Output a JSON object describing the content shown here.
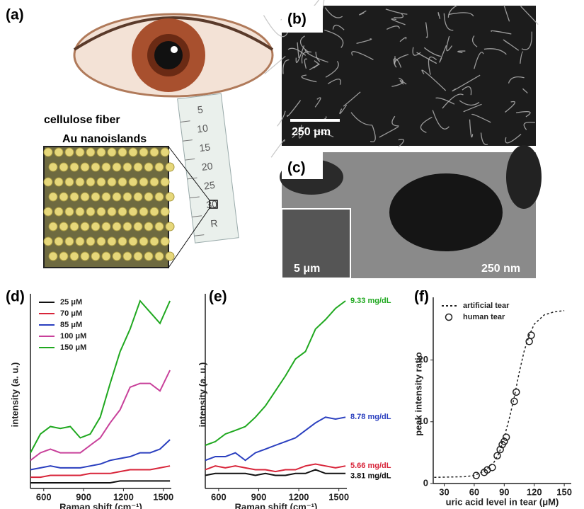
{
  "panels": {
    "a": {
      "label": "(a)",
      "annotations": [
        "cellulose fiber",
        "Au nanoislands"
      ],
      "ruler_ticks": [
        "5",
        "10",
        "15",
        "20",
        "25",
        "30",
        "R"
      ]
    },
    "b": {
      "label": "(b)",
      "scale_bar": "250 μm"
    },
    "c": {
      "label": "(c)",
      "scale_bars": [
        "5 μm",
        "250 nm"
      ]
    }
  },
  "chart_data": [
    {
      "type": "line",
      "label": "(d)",
      "xlabel": "Raman shift (cm⁻¹)",
      "ylabel": "intensity (a. u.)",
      "legend": "upper-left",
      "x": [
        500,
        575,
        650,
        725,
        800,
        875,
        950,
        1025,
        1100,
        1175,
        1250,
        1325,
        1400,
        1475,
        1550
      ],
      "xlim": [
        500,
        1560
      ],
      "xticks": [
        600,
        900,
        1200,
        1500
      ],
      "ylim": [
        0,
        100
      ],
      "series": [
        {
          "name": "25 μM",
          "color": "#111111",
          "values": [
            3,
            3,
            3,
            3,
            3,
            3,
            3,
            3,
            3,
            4,
            4,
            4,
            4,
            4,
            4
          ]
        },
        {
          "name": "70 μM",
          "color": "#d8253a",
          "values": [
            6,
            6,
            7,
            7,
            7,
            7,
            8,
            8,
            8,
            9,
            10,
            10,
            10,
            11,
            12
          ]
        },
        {
          "name": "85 μM",
          "color": "#2a3fbf",
          "values": [
            10,
            11,
            12,
            11,
            11,
            11,
            12,
            13,
            15,
            16,
            17,
            19,
            19,
            21,
            26
          ]
        },
        {
          "name": "100 μM",
          "color": "#c8409a",
          "values": [
            15,
            19,
            21,
            19,
            19,
            19,
            23,
            27,
            35,
            42,
            54,
            56,
            56,
            52,
            63
          ]
        },
        {
          "name": "150 μM",
          "color": "#1fa81f",
          "values": [
            19,
            29,
            33,
            32,
            33,
            27,
            29,
            38,
            56,
            73,
            85,
            100,
            94,
            88,
            100
          ]
        }
      ]
    },
    {
      "type": "line",
      "label": "(e)",
      "xlabel": "Raman shift (cm⁻¹)",
      "ylabel": "intensity (a. u.)",
      "legend": "end",
      "x": [
        500,
        575,
        650,
        725,
        800,
        875,
        950,
        1025,
        1100,
        1175,
        1250,
        1325,
        1400,
        1475,
        1550
      ],
      "xlim": [
        500,
        1560
      ],
      "xticks": [
        600,
        900,
        1200,
        1500
      ],
      "ylim": [
        0,
        100
      ],
      "series": [
        {
          "name": "3.81 mg/dL",
          "color": "#111111",
          "values": [
            7,
            8,
            8,
            8,
            8,
            7,
            8,
            7,
            7,
            8,
            8,
            10,
            8,
            8,
            8
          ]
        },
        {
          "name": "5.66 mg/dL",
          "color": "#d8253a",
          "values": [
            10,
            12,
            11,
            12,
            11,
            10,
            10,
            9,
            10,
            10,
            12,
            13,
            12,
            11,
            12
          ]
        },
        {
          "name": "8.78 mg/dL",
          "color": "#2a3fbf",
          "values": [
            15,
            17,
            17,
            19,
            15,
            19,
            21,
            23,
            25,
            27,
            31,
            35,
            38,
            37,
            38
          ]
        },
        {
          "name": "9.33 mg/dL",
          "color": "#1fa81f",
          "values": [
            23,
            25,
            29,
            31,
            33,
            38,
            44,
            52,
            60,
            69,
            73,
            85,
            90,
            96,
            100
          ]
        }
      ]
    },
    {
      "type": "line",
      "label": "(f)",
      "xlabel": "uric acid level in tear (μM)",
      "ylabel": "peak intensity ratio",
      "legend": "upper-left",
      "xlim": [
        19,
        157
      ],
      "xticks": [
        30,
        60,
        90,
        120,
        150
      ],
      "ylim": [
        0,
        29
      ],
      "yticks": [
        0,
        10,
        20
      ],
      "series": [
        {
          "name": "artificial tear",
          "color": "#222222",
          "style": "dashed",
          "x": [
            20,
            50,
            60,
            70,
            80,
            85,
            90,
            95,
            100,
            105,
            110,
            115,
            120,
            130,
            140,
            150
          ],
          "values": [
            1,
            1.1,
            1.3,
            2,
            3.5,
            5,
            7.5,
            10.5,
            14,
            18,
            21.5,
            24,
            25.8,
            27.3,
            27.8,
            28
          ]
        },
        {
          "name": "human tear",
          "color": "#222222",
          "style": "marker",
          "x": [
            62,
            70,
            73,
            78,
            83,
            86,
            88,
            90,
            92,
            100,
            102,
            115,
            117
          ],
          "values": [
            1.3,
            1.8,
            2.2,
            2.6,
            4.5,
            5.5,
            6.3,
            6.8,
            7.5,
            13.3,
            14.8,
            23,
            24
          ]
        }
      ]
    }
  ]
}
